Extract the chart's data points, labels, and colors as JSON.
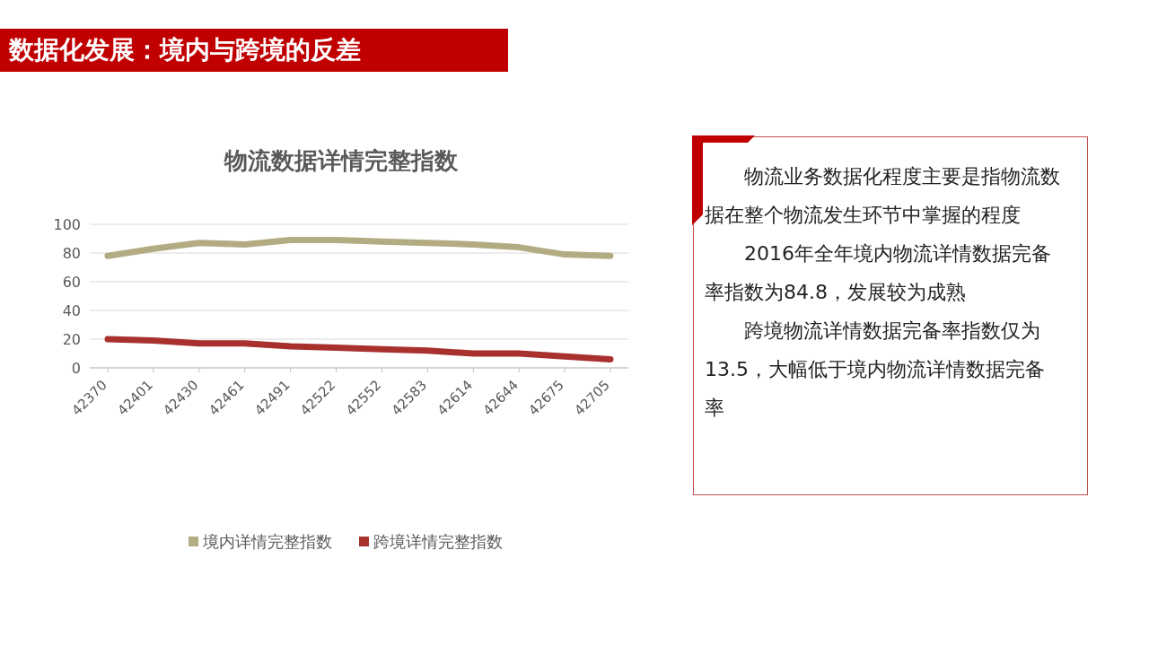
{
  "chart_data": [
    {
      "type": "line",
      "title": "数据化发展：境内与跨境的反差",
      "subtitle": "物流数据详情完整指数",
      "categories": [
        "42370",
        "42401",
        "42430",
        "42461",
        "42491",
        "42522",
        "42552",
        "42583",
        "42614",
        "42644",
        "42675",
        "42705"
      ],
      "series": [
        {
          "name": "境内详情完整指数",
          "color": "#b3ab82",
          "values": [
            78,
            83,
            87,
            86,
            89,
            89,
            88,
            87,
            86,
            84,
            79,
            78
          ]
        },
        {
          "name": "跨境详情完整指数",
          "color": "#a8312e",
          "values": [
            20,
            19,
            17,
            17,
            15,
            14,
            13,
            12,
            10,
            10,
            8,
            6
          ]
        }
      ],
      "ylim": [
        0,
        100
      ],
      "yticks": [
        0,
        20,
        40,
        60,
        80,
        100
      ],
      "grid": "y",
      "legend": "bottom",
      "marker": "none",
      "line_style": "solid"
    },
    {
      "type": "other",
      "annotations": [
        "物流业务数据化程度主要是指物流数据在整个物流发生环节中掌握的程度",
        "2016年全年境内物流详情数据完备率指数为84.8，发展较为成熟",
        "跨境物流详情数据完备率指数仅为13.5，大幅低于境内物流详情数据完备率"
      ]
    }
  ]
}
